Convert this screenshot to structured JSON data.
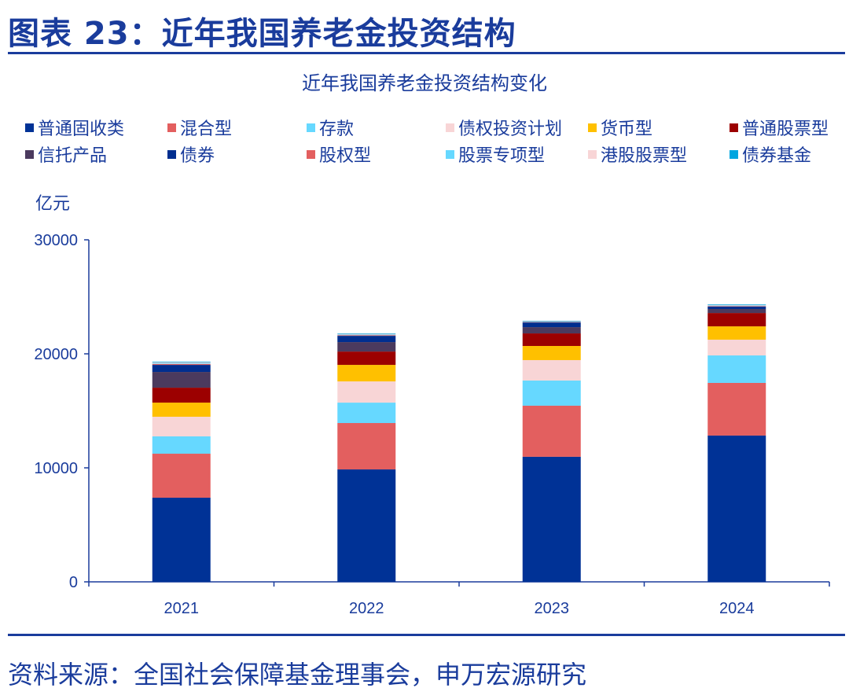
{
  "header": {
    "figure_title": "图表 23：近年我国养老金投资结构"
  },
  "footer": {
    "source": "资料来源：全国社会保障基金理事会，申万宏源研究"
  },
  "chart_data": {
    "type": "bar",
    "stacked": true,
    "title": "近年我国养老金投资结构变化",
    "ylabel": "亿元",
    "xlabel": "",
    "ylim": [
      0,
      30000
    ],
    "yticks": [
      "0",
      "10000",
      "20000",
      "30000"
    ],
    "categories": [
      "2021",
      "2022",
      "2023",
      "2024"
    ],
    "legend_placement": "top",
    "grid": false,
    "series": [
      {
        "name": "普通固收类",
        "color": "#003296",
        "values": [
          7380,
          9860,
          10970,
          12830
        ]
      },
      {
        "name": "混合型",
        "color": "#E35F5F",
        "values": [
          3860,
          4070,
          4480,
          4620
        ]
      },
      {
        "name": "存款",
        "color": "#66D8FF",
        "values": [
          1520,
          1790,
          2210,
          2410
        ]
      },
      {
        "name": "债权投资计划",
        "color": "#F8D5D6",
        "values": [
          1720,
          1860,
          1790,
          1380
        ]
      },
      {
        "name": "货币型",
        "color": "#FFC000",
        "values": [
          1240,
          1450,
          1240,
          1170
        ]
      },
      {
        "name": "普通股票型",
        "color": "#9C0000",
        "values": [
          1310,
          1170,
          1100,
          1170
        ]
      },
      {
        "name": "信托产品",
        "color": "#4B3A5E",
        "values": [
          1380,
          830,
          550,
          350
        ]
      },
      {
        "name": "债券",
        "color": "#002E8F",
        "values": [
          620,
          550,
          410,
          210
        ]
      },
      {
        "name": "股权型",
        "color": "#E35F5F",
        "values": [
          80,
          60,
          40,
          50
        ]
      },
      {
        "name": "股票专项型",
        "color": "#66D8FF",
        "values": [
          60,
          50,
          40,
          50
        ]
      },
      {
        "name": "港股股票型",
        "color": "#F8D5D6",
        "values": [
          80,
          60,
          30,
          50
        ]
      },
      {
        "name": "债券基金",
        "color": "#00A6E0",
        "values": [
          60,
          50,
          40,
          50
        ]
      }
    ]
  }
}
